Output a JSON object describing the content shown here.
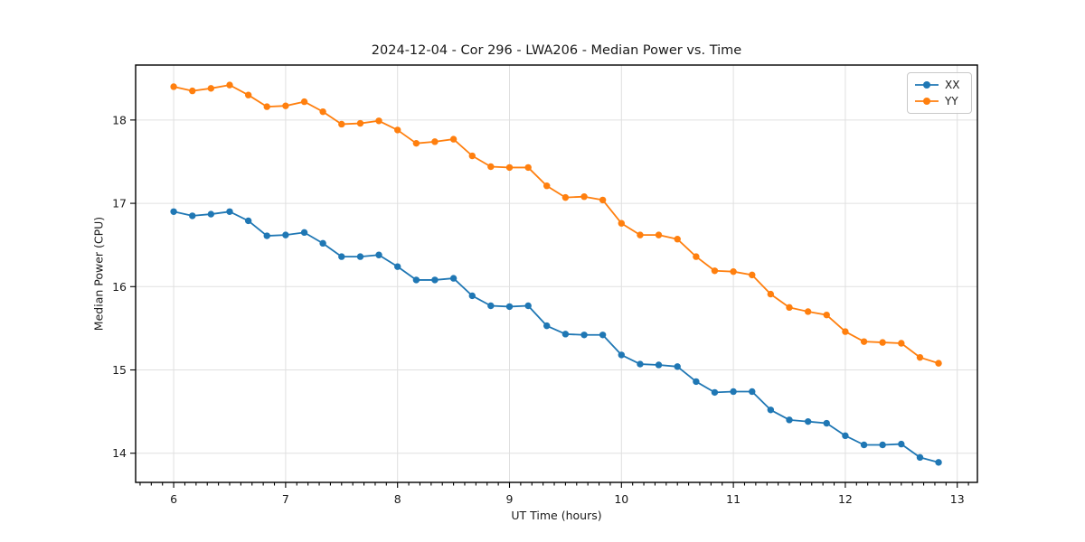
{
  "chart_data": {
    "type": "line",
    "title": "2024-12-04 - Cor 296 - LWA206 - Median Power vs. Time",
    "xlabel": "UT Time (hours)",
    "ylabel": "Median Power (CPU)",
    "xlim": [
      5.66,
      13.18
    ],
    "ylim": [
      13.65,
      18.66
    ],
    "xticks": [
      6,
      7,
      8,
      9,
      10,
      11,
      12,
      13
    ],
    "yticks": [
      14,
      15,
      16,
      17,
      18
    ],
    "minor_xtick_step": 0.1,
    "grid": true,
    "legend_position": "upper right",
    "x": [
      6.0,
      6.167,
      6.333,
      6.5,
      6.667,
      6.833,
      7.0,
      7.167,
      7.333,
      7.5,
      7.667,
      7.833,
      8.0,
      8.167,
      8.333,
      8.5,
      8.667,
      8.833,
      9.0,
      9.167,
      9.333,
      9.5,
      9.667,
      9.833,
      10.0,
      10.167,
      10.333,
      10.5,
      10.667,
      10.833,
      11.0,
      11.167,
      11.333,
      11.5,
      11.667,
      11.833,
      12.0,
      12.167,
      12.333,
      12.5,
      12.667,
      12.833
    ],
    "series": [
      {
        "name": "XX",
        "color": "#1f77b4",
        "values": [
          16.9,
          16.85,
          16.87,
          16.9,
          16.79,
          16.61,
          16.62,
          16.65,
          16.52,
          16.36,
          16.36,
          16.38,
          16.24,
          16.08,
          16.08,
          16.1,
          15.89,
          15.77,
          15.76,
          15.77,
          15.53,
          15.43,
          15.42,
          15.42,
          15.18,
          15.07,
          15.06,
          15.04,
          14.86,
          14.73,
          14.74,
          14.74,
          14.52,
          14.4,
          14.38,
          14.36,
          14.21,
          14.1,
          14.1,
          14.11,
          13.95,
          13.89
        ]
      },
      {
        "name": "YY",
        "color": "#ff7f0e",
        "values": [
          18.4,
          18.35,
          18.38,
          18.42,
          18.3,
          18.16,
          18.17,
          18.22,
          18.1,
          17.95,
          17.96,
          17.99,
          17.88,
          17.72,
          17.74,
          17.77,
          17.57,
          17.44,
          17.43,
          17.43,
          17.21,
          17.07,
          17.08,
          17.04,
          16.76,
          16.62,
          16.62,
          16.57,
          16.36,
          16.19,
          16.18,
          16.14,
          15.91,
          15.75,
          15.7,
          15.66,
          15.46,
          15.34,
          15.33,
          15.32,
          15.15,
          15.08
        ]
      }
    ]
  }
}
